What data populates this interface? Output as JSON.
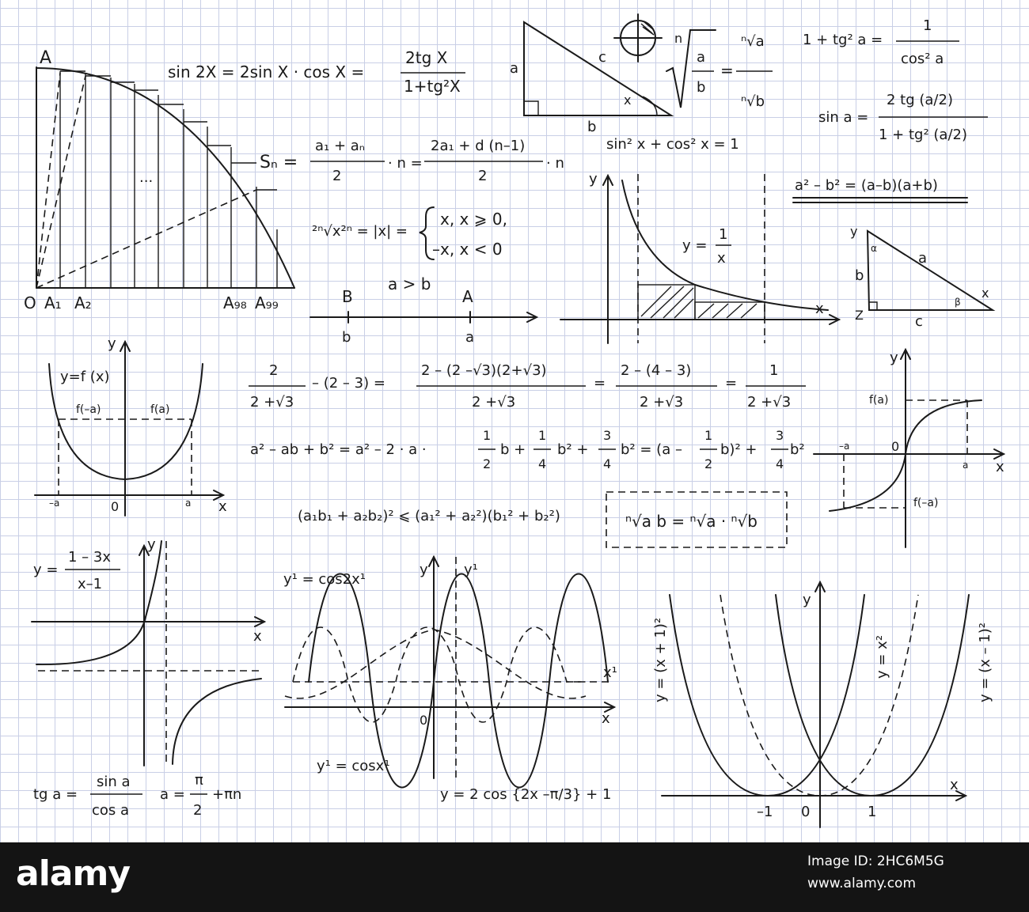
{
  "formulas": {
    "sin_double": "sin 2X = 2sin X · cos X =",
    "sin_double_num": "2tg X",
    "sin_double_den": "1+tg²X",
    "sum_lhs": "Sₙ =",
    "sum_frac1_num": "a₁ + aₙ",
    "sum_frac1_den": "2",
    "sum_mid": "· n =",
    "sum_frac2_num": "2a₁ + d (n–1)",
    "sum_frac2_den": "2",
    "sum_end": "· n",
    "root_abs_lhs": "²ⁿ√x²ⁿ = |x| =",
    "root_abs_case1": "x, x ⩾ 0,",
    "root_abs_case2": "–x,   x < 0",
    "a_gt_b": "a > b",
    "pt_B": "B",
    "pt_b": "b",
    "pt_A": "A",
    "pt_a": "a",
    "pythag": "sin² x + cos² x = 1",
    "tg_identity_lhs": "1 + tg² a =",
    "tg_identity_num": "1",
    "tg_identity_den": "cos² a",
    "sin_half_lhs": "sin a =",
    "sin_half_num": "2 tg (a/2)",
    "sin_half_den": "1 + tg² (a/2)",
    "diff_squares": "a² – b² = (a–b)(a+b)",
    "root_frac_lhs_num": "a",
    "root_frac_lhs_den": "b",
    "root_frac_rhs_num": "ⁿ√a",
    "root_frac_rhs_den": "ⁿ√b",
    "root_n": "n",
    "rat_num1": "2",
    "rat_den1": "2 +√3",
    "rat_mid": "– (2 –  3) =",
    "rat_num2": "2 – (2 –√3)(2+√3)",
    "rat_den2": "2 +√3",
    "rat_num3": "2 – (4 – 3)",
    "rat_den3": "2 +√3",
    "rat_num4": "1",
    "rat_den4": "2 +√3",
    "square_line": "a² – ab + b² = a² – 2 · a ·",
    "square_f1n": "1",
    "square_f1d": "2",
    "square_b_plus": "b +",
    "square_f2n": "1",
    "square_f2d": "4",
    "square_b2_plus": "b² +",
    "square_f3n": "3",
    "square_f3d": "4",
    "square_b2_eq": "b² = (a –",
    "square_f4n": "1",
    "square_f4d": "2",
    "square_b_close": "b)² +",
    "square_f5n": "3",
    "square_f5d": "4",
    "square_end": "b²",
    "cauchy": "(a₁b₁ + a₂b₂)² ⩽ (a₁² + a₂²)(b₁² + b₂²)",
    "root_product": "ⁿ√a b = ⁿ√a · ⁿ√b",
    "hyper_label_num": "1 – 3x",
    "hyper_label_den": "x–1",
    "hyper_label_lhs": "y =",
    "tg_def_lhs": "tg a =",
    "tg_def_num": "sin a",
    "tg_def_den": "cos a",
    "tg_def_mid": "a =",
    "tg_def_pi": "π",
    "tg_def_two": "2",
    "tg_def_end": "+πn",
    "cos2x": "y¹ =  cos2x¹",
    "cosx": "y¹ =  cosx¹",
    "cos_shift": "y = 2 cos {2x –π/3} + 1"
  },
  "graphs": {
    "area_A": "A",
    "area_O": "O",
    "area_A1": "A₁",
    "area_A2": "A₂",
    "area_A98": "A₉₈",
    "area_A99": "A₉₉",
    "area_dots": "...",
    "tri1_a": "a",
    "tri1_b": "b",
    "tri1_c": "c",
    "tri1_x": "x",
    "recip_y": "y",
    "recip_x": "x",
    "recip_eq_lhs": "y =",
    "recip_eq_num": "1",
    "recip_eq_den": "x",
    "tri2_y": "y",
    "tri2_a": "a",
    "tri2_b": "b",
    "tri2_c": "c",
    "tri2_x": "x",
    "tri2_z": "Z",
    "tri2_alpha": "α",
    "tri2_beta": "β",
    "para_y": "y",
    "para_fx": "y=f (x)",
    "para_fma": "f(–a)",
    "para_fa": "f(a)",
    "para_minus_a": "–a",
    "para_o": "0",
    "para_a": "a",
    "para_x": "x",
    "odd_y": "y",
    "odd_fa": "f(a)",
    "odd_ma": "–a",
    "odd_o": "0",
    "odd_a": "a",
    "odd_x": "x",
    "odd_fma": "f(–a)",
    "hyp_y": "y",
    "hyp_x": "x",
    "cos_y": "y",
    "cos_y1": "y¹",
    "cos_x1": "x¹",
    "cos_x": "x",
    "cos_o": "0",
    "par3_y": "y",
    "par3_x": "x",
    "par3_m1": "–1",
    "par3_o": "0",
    "par3_1": "1",
    "par3_left": "y = (x + 1)²",
    "par3_mid": "y = x²",
    "par3_right": "y = (x – 1)²"
  },
  "footer": {
    "logo": "alamy",
    "image_id": "Image ID: 2HC6M5G",
    "url": "www.alamy.com"
  }
}
